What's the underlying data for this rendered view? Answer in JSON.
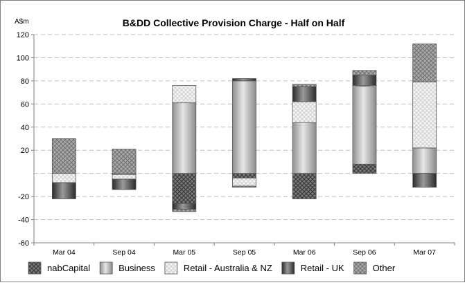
{
  "chart_data": {
    "type": "bar",
    "stacked": true,
    "title": "B&DD Collective Provision Charge - Half on Half",
    "ylabel": "A$m",
    "xlabel": "",
    "ylim": [
      -60,
      120
    ],
    "yticks": [
      -60,
      -40,
      -20,
      20,
      40,
      60,
      80,
      100,
      120
    ],
    "grid": true,
    "legend_position": "bottom",
    "categories": [
      "Mar 04",
      "Sep 04",
      "Mar 05",
      "Sep 05",
      "Mar 06",
      "Sep 06",
      "Mar 07"
    ],
    "series": [
      {
        "name": "nabCapital",
        "pattern": "crosshatch-dark",
        "values": [
          0,
          0,
          -26,
          -4,
          -22,
          8,
          0
        ]
      },
      {
        "name": "Business",
        "pattern": "gradient-grey",
        "values": [
          0,
          -1,
          61,
          80,
          44,
          67,
          22
        ]
      },
      {
        "name": "Retail - Australia & NZ",
        "pattern": "crosshatch-light",
        "values": [
          -8,
          -4,
          15,
          -7,
          18,
          1,
          57
        ]
      },
      {
        "name": "Retail - UK",
        "pattern": "gradient-dark",
        "values": [
          -14,
          -9,
          -5,
          2,
          13,
          9,
          -12
        ]
      },
      {
        "name": "Other",
        "pattern": "crosshatch-mid",
        "values": [
          30,
          21,
          -2,
          -1,
          2,
          4,
          33
        ]
      }
    ],
    "colors": {
      "gridline": "#bfbfbf",
      "axis": "#7f7f7f",
      "border": "#555555"
    }
  }
}
